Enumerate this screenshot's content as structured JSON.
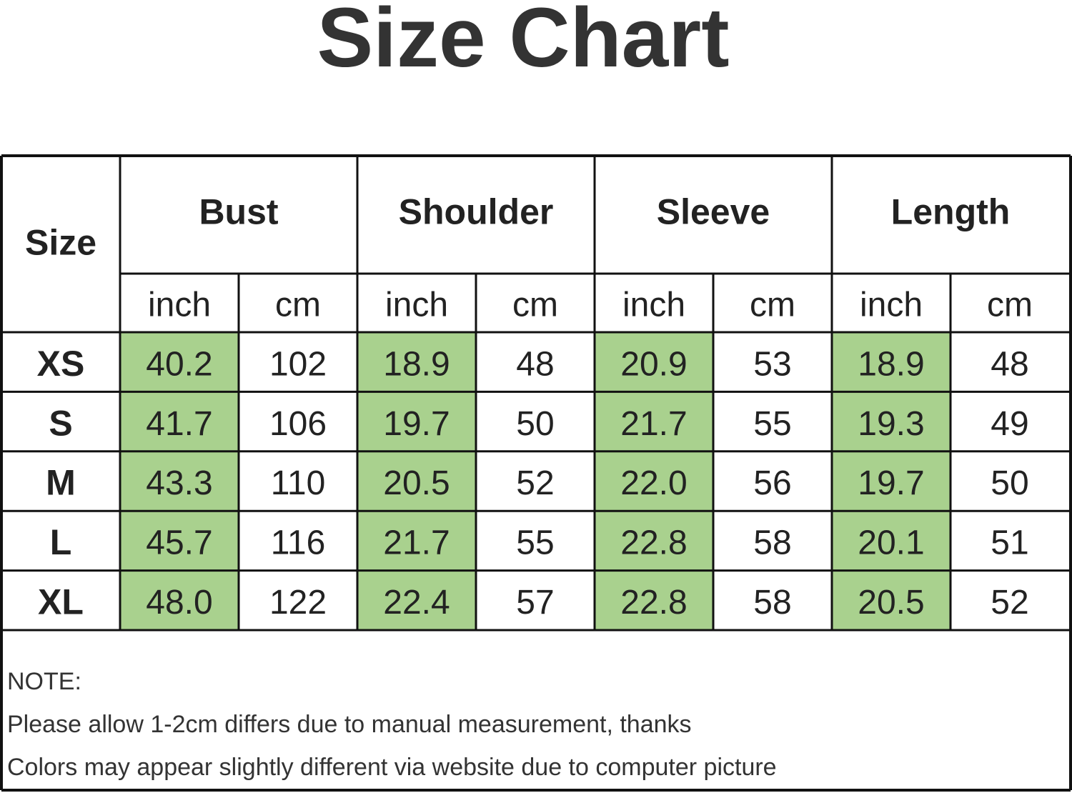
{
  "header": {
    "title": "Size Chart"
  },
  "table": {
    "size_header": "Size",
    "groups": [
      "Bust",
      "Shoulder",
      "Sleeve",
      "Length"
    ],
    "units": [
      "inch",
      "cm",
      "inch",
      "cm",
      "inch",
      "cm",
      "inch",
      "cm"
    ],
    "rows": [
      {
        "size": "XS",
        "cells": [
          "40.2",
          "102",
          "18.9",
          "48",
          "20.9",
          "53",
          "18.9",
          "48"
        ]
      },
      {
        "size": "S",
        "cells": [
          "41.7",
          "106",
          "19.7",
          "50",
          "21.7",
          "55",
          "19.3",
          "49"
        ]
      },
      {
        "size": "M",
        "cells": [
          "43.3",
          "110",
          "20.5",
          "52",
          "22.0",
          "56",
          "19.7",
          "50"
        ]
      },
      {
        "size": "L",
        "cells": [
          "45.7",
          "116",
          "21.7",
          "55",
          "22.8",
          "58",
          "20.1",
          "51"
        ]
      },
      {
        "size": "XL",
        "cells": [
          "48.0",
          "122",
          "22.4",
          "57",
          "22.8",
          "58",
          "20.5",
          "52"
        ]
      }
    ]
  },
  "note": {
    "title": "NOTE:",
    "lines": [
      "Please allow 1-2cm differs due to manual measurement, thanks",
      "Colors may appear slightly different via website due to computer picture"
    ]
  }
}
